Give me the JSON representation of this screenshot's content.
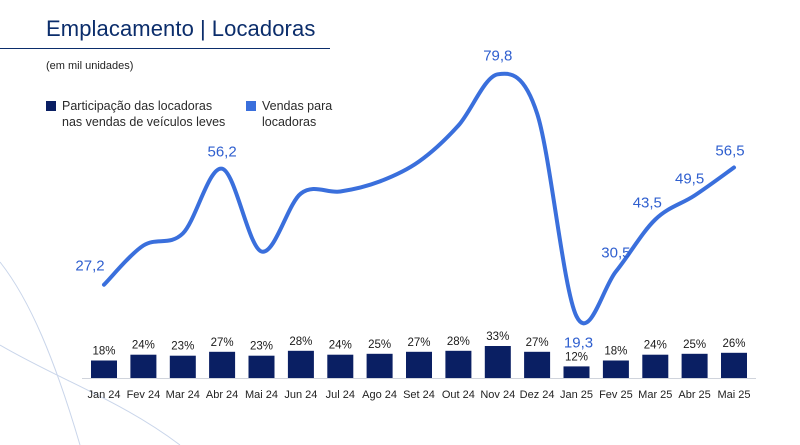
{
  "title_part1": "Emplacamento",
  "title_separator": "|",
  "title_part2": "Locadoras",
  "subtitle": "(em mil unidades)",
  "legend": {
    "share_label_line1": "Participação das locadoras",
    "share_label_line2": "nas vendas de veículos leves",
    "sales_label_line1": "Vendas para",
    "sales_label_line2": "locadoras"
  },
  "colors": {
    "title": "#0b2d6b",
    "bar": "#0a1f63",
    "line": "#3a6fdc",
    "line_label": "#2f5fcf"
  },
  "chart_data": {
    "type": "bar+line",
    "title": "Emplacamento | Locadoras",
    "subtitle": "(em mil unidades)",
    "categories": [
      "Jan 24",
      "Fev 24",
      "Mar 24",
      "Abr 24",
      "Mai 24",
      "Jun 24",
      "Jul 24",
      "Ago 24",
      "Set 24",
      "Out 24",
      "Nov 24",
      "Dez 24",
      "Jan 25",
      "Fev 25",
      "Mar 25",
      "Abr 25",
      "Mai 25"
    ],
    "bar_series": {
      "name": "Participação das locadoras nas vendas de veículos leves",
      "values": [
        18,
        24,
        23,
        27,
        23,
        28,
        24,
        25,
        27,
        28,
        33,
        27,
        12,
        18,
        24,
        25,
        26
      ],
      "labels": [
        "18%",
        "24%",
        "23%",
        "27%",
        "23%",
        "28%",
        "24%",
        "25%",
        "27%",
        "28%",
        "33%",
        "27%",
        "12%",
        "18%",
        "24%",
        "25%",
        "26%"
      ]
    },
    "line_series": {
      "name": "Vendas para locadoras",
      "values": [
        27.2,
        37.0,
        40.0,
        56.2,
        35.5,
        50.0,
        50.5,
        53.0,
        58.0,
        67.0,
        79.8,
        70.0,
        19.3,
        30.5,
        43.5,
        49.5,
        56.5
      ],
      "labeled": [
        {
          "index": 0,
          "text": "27,2"
        },
        {
          "index": 3,
          "text": "56,2"
        },
        {
          "index": 10,
          "text": "79,8"
        },
        {
          "index": 12,
          "text": "19,3"
        },
        {
          "index": 13,
          "text": "30,5"
        },
        {
          "index": 14,
          "text": "43,5"
        },
        {
          "index": 15,
          "text": "49,5"
        },
        {
          "index": 16,
          "text": "56,5"
        }
      ]
    },
    "grid": false,
    "legend_position": "top-left"
  }
}
